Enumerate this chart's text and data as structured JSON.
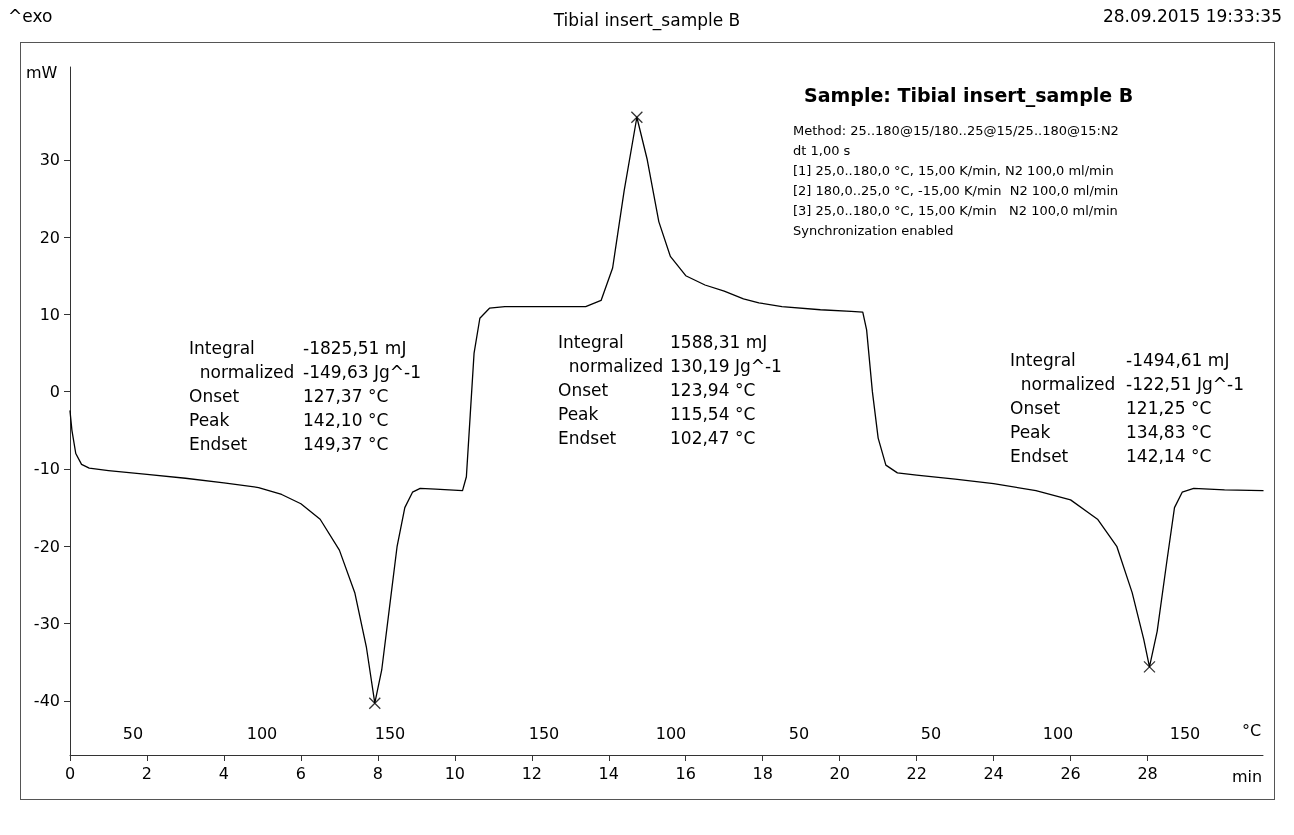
{
  "chart_data": {
    "type": "line",
    "title": "Tibial insert_sample B",
    "subtitle": "Sample: Tibial insert_sample B",
    "xlabel": "min",
    "ylabel": "mW",
    "x2label": "°C",
    "annotations": [
      "^exo",
      "28.09.2015 19:33:35",
      "Method: 25..180@15/180..25@15/25..180@15:N2\ndt 1,00 s\n[1] 25,0..180,0 °C, 15,00 K/min, N2 100,0 ml/min\n[2] 180,0..25,0 °C, -15,00 K/min  N2 100,0 ml/min\n[3] 25,0..180,0 °C, 15,00 K/min   N2 100,0 ml/min\nSynchronization enabled",
      "Integral\n  normalized\nOnset\nPeak\nEndset",
      "-1825,51 mJ\n-149,63 Jg^-1\n127,37 °C\n142,10 °C\n149,37 °C",
      "Integral\n  normalized\nOnset\nPeak\nEndset",
      "1588,31 mJ\n130,19 Jg^-1\n123,94 °C\n115,54 °C\n102,47 °C",
      "Integral\n  normalized\nOnset\nPeak\nEndset",
      "-1494,61 mJ\n-122,51 Jg^-1\n121,25 °C\n134,83 °C\n142,14 °C",
      "50",
      "100",
      "150",
      "150",
      "100",
      "50",
      "50",
      "100",
      "150"
    ],
    "marker": "none",
    "line_style": "solid",
    "xlim": [
      0,
      31
    ],
    "xticks": [
      0,
      2,
      4,
      6,
      8,
      10,
      12,
      14,
      16,
      18,
      20,
      22,
      24,
      26,
      28
    ],
    "ylim": [
      -47,
      42
    ],
    "yticks": [
      -40,
      -30,
      -20,
      -10,
      0,
      10,
      20,
      30
    ],
    "series": [
      {
        "color": "#000000",
        "x": [
          0,
          0.05,
          0.15,
          0.3,
          0.5,
          1,
          2,
          3,
          4,
          4.9,
          5.5,
          6,
          6.5,
          7,
          7.4,
          7.7,
          7.92,
          8.1,
          8.3,
          8.5,
          8.7,
          8.9,
          9.1,
          9.5,
          10.2,
          10.3,
          10.4,
          10.5,
          10.65,
          10.9,
          11.3,
          12,
          13,
          13.4,
          13.8,
          14.1,
          14.4,
          14.73,
          15.0,
          15.3,
          15.6,
          16,
          16.5,
          17,
          17.5,
          17.9,
          18.5,
          19.5,
          20.3,
          20.6,
          20.7,
          20.85,
          21.0,
          21.2,
          21.5,
          22,
          23,
          24,
          25.1,
          26,
          26.7,
          27.2,
          27.6,
          27.9,
          28.05,
          28.25,
          28.5,
          28.7,
          28.9,
          29.2,
          30,
          31
        ],
        "values": [
          -2.5,
          -5,
          -8,
          -9.4,
          -9.9,
          -10.2,
          -10.7,
          -11.2,
          -11.8,
          -12.4,
          -13.3,
          -14.5,
          -16.5,
          -20.5,
          -26,
          -33,
          -40.3,
          -36,
          -28,
          -20,
          -15,
          -13,
          -12.5,
          -12.6,
          -12.8,
          -11,
          -3,
          5,
          9.5,
          10.8,
          11,
          11,
          11,
          11,
          11.8,
          16,
          26,
          35.5,
          30,
          22,
          17.5,
          15,
          13.8,
          13,
          12,
          11.5,
          11,
          10.6,
          10.4,
          10.3,
          8,
          0,
          -6,
          -9.5,
          -10.5,
          -10.8,
          -11.3,
          -11.9,
          -12.8,
          -14,
          -16.5,
          -20,
          -26,
          -32,
          -35.6,
          -31,
          -22,
          -15,
          -13,
          -12.5,
          -12.7,
          -12.8
        ]
      },
      {
        "type": "scatter",
        "marker": "cross",
        "color": "#000000",
        "x": [
          7.92,
          14.73,
          28.05
        ],
        "values": [
          -40.3,
          35.5,
          -35.6
        ]
      }
    ]
  }
}
